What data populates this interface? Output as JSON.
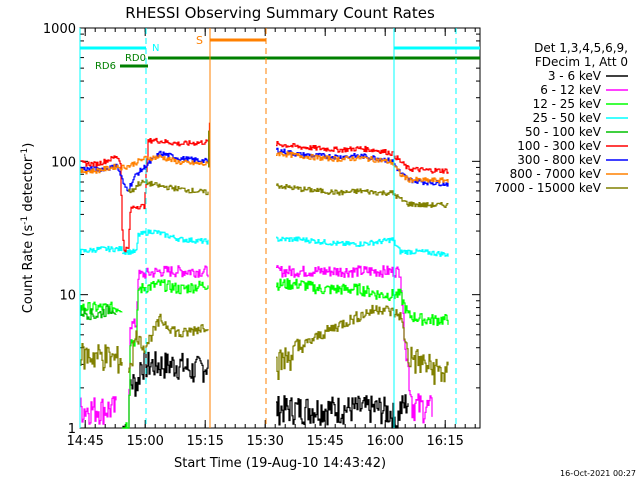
{
  "chart_data": {
    "type": "line",
    "title": "RHESSI Observing Summary Count Rates",
    "xlabel": "Start Time (19-Aug-10 14:43:42)",
    "ylabel_main": "Count Rate (s",
    "ylabel_sup1": "-1",
    "ylabel_mid": " detector",
    "ylabel_sup2": "-1",
    "ylabel_end": ")",
    "yscale": "log",
    "ylim": [
      1,
      1000
    ],
    "xlim_minutes": [
      0,
      100
    ],
    "x_ticks": [
      {
        "minute": 1.3,
        "label": "14:45"
      },
      {
        "minute": 16.3,
        "label": "15:00"
      },
      {
        "minute": 31.3,
        "label": "15:15"
      },
      {
        "minute": 46.3,
        "label": "15:30"
      },
      {
        "minute": 61.3,
        "label": "15:45"
      },
      {
        "minute": 76.3,
        "label": "16:00"
      },
      {
        "minute": 91.3,
        "label": "16:15"
      }
    ],
    "y_ticks": [
      {
        "value": 1,
        "label": "1"
      },
      {
        "value": 10,
        "label": "10"
      },
      {
        "value": 100,
        "label": "100"
      },
      {
        "value": 1000,
        "label": "1000"
      }
    ],
    "legend_header": [
      "Det 1,3,4,5,6,9,",
      "FDecim 1, Att 0"
    ],
    "timestamp": "16-Oct-2021 00:27",
    "markers": {
      "night_label": "N",
      "saa_label": "S",
      "rd0_label": "RD0",
      "rd6_label": "RD6",
      "night_color": "#00ffff",
      "saa_color": "#ff8000",
      "rd_color": "#008000",
      "night_bars": [
        [
          0,
          16.5
        ],
        [
          78.5,
          100
        ]
      ],
      "saa_bar": [
        32.5,
        46.5
      ],
      "rd0_bar": [
        17,
        100
      ],
      "rd6_bar": [
        10,
        17
      ],
      "night_lines": [
        16.5,
        94
      ],
      "night_dashed": [
        16.5,
        94
      ],
      "night_solid": [
        0,
        78.5
      ],
      "saa_solid": [
        32.5
      ],
      "saa_dashed": [
        46.5
      ]
    },
    "gap": [
      33,
      49
    ],
    "series": [
      {
        "name": "3 - 6 keV",
        "color": "#000000",
        "segments": [
          {
            "x": [
              10.5,
              12,
              12.5,
              14.5,
              15,
              20,
              25,
              28,
              32.2
            ],
            "y": [
              1,
              1,
              2.2,
              2.2,
              3,
              3,
              3,
              2.7,
              3
            ]
          },
          {
            "x": [
              49,
              55,
              60,
              65,
              70,
              75,
              78,
              79,
              80,
              82
            ],
            "y": [
              1.4,
              1.4,
              1.4,
              1.4,
              1.4,
              1.4,
              1.3,
              1.1,
              1.4,
              1.6
            ]
          }
        ]
      },
      {
        "name": "6 - 12 keV",
        "color": "#ff00ff",
        "segments": [
          {
            "x": [
              0,
              4,
              9
            ],
            "y": [
              1.4,
              1.4,
              1.4
            ]
          },
          {
            "x": [
              12,
              12.5,
              14,
              14.5,
              20,
              25,
              32.2
            ],
            "y": [
              1,
              6,
              6,
              14,
              15,
              15,
              15
            ]
          },
          {
            "x": [
              49,
              55,
              60,
              65,
              70,
              75,
              80,
              81,
              83,
              88
            ],
            "y": [
              15,
              15,
              15,
              15,
              15,
              15,
              15,
              5,
              1.5,
              1.4
            ]
          }
        ]
      },
      {
        "name": "12 - 25 keV",
        "color": "#00ff00",
        "segments": [
          {
            "x": [
              0,
              5,
              10.5
            ],
            "y": [
              8,
              8,
              8
            ]
          },
          {
            "x": [
              10.5,
              12,
              12.5,
              14,
              14.5,
              20,
              25,
              32.2
            ],
            "y": [
              1,
              1,
              4.5,
              4.5,
              11,
              12,
              11,
              12
            ]
          },
          {
            "x": [
              49,
              55,
              60,
              65,
              70,
              75,
              80,
              82,
              86,
              92
            ],
            "y": [
              12,
              12,
              11,
              11,
              11,
              10,
              10,
              7,
              6.5,
              6.5
            ]
          }
        ]
      },
      {
        "name": "25 - 50 keV",
        "color": "#00ffff",
        "segments": [
          {
            "x": [
              0,
              5,
              10.5
            ],
            "y": [
              21,
              22,
              22
            ]
          },
          {
            "x": [
              10.5,
              12,
              14,
              14.5,
              18,
              25,
              32.2
            ],
            "y": [
              21,
              21,
              21,
              28,
              30,
              26,
              25
            ]
          },
          {
            "x": [
              49,
              55,
              60,
              65,
              70,
              75,
              78,
              80,
              85,
              92
            ],
            "y": [
              26,
              26,
              25,
              24,
              24,
              25,
              26,
              21,
              21,
              20
            ]
          }
        ]
      },
      {
        "name": "50 - 100 keV",
        "color": "#00c000",
        "segments": [
          {
            "x": [
              0,
              4,
              8,
              9
            ],
            "y": [
              7.5,
              7,
              8,
              7.5
            ]
          }
        ]
      },
      {
        "name": "100 - 300 keV",
        "color": "#ff0000",
        "segments": [
          {
            "x": [
              0,
              4,
              8,
              9,
              10,
              10.5,
              11,
              12,
              12.5,
              13,
              14,
              16,
              17,
              18,
              25,
              32.2
            ],
            "y": [
              97,
              95,
              105,
              110,
              100,
              30,
              22,
              22,
              42,
              45,
              46,
              46,
              140,
              145,
              135,
              140
            ]
          },
          {
            "x": [
              49,
              55,
              60,
              65,
              70,
              75,
              78,
              80,
              82,
              86,
              92
            ],
            "y": [
              135,
              128,
              125,
              122,
              125,
              120,
              115,
              100,
              88,
              86,
              85
            ]
          }
        ]
      },
      {
        "name": "300 - 800 keV",
        "color": "#0000ff",
        "segments": [
          {
            "x": [
              0,
              4,
              8,
              9,
              10,
              11,
              12,
              14,
              16,
              20,
              25,
              32.2
            ],
            "y": [
              88,
              87,
              90,
              95,
              80,
              65,
              62,
              80,
              90,
              115,
              105,
              100
            ]
          },
          {
            "x": [
              49,
              55,
              60,
              65,
              70,
              75,
              78,
              80,
              82,
              86,
              92
            ],
            "y": [
              122,
              112,
              110,
              108,
              110,
              105,
              100,
              82,
              73,
              70,
              68
            ]
          }
        ]
      },
      {
        "name": "800 - 7000 keV",
        "color": "#ff8000",
        "segments": [
          {
            "x": [
              0,
              4,
              8,
              9,
              10,
              12,
              16,
              20,
              25,
              32.2
            ],
            "y": [
              84,
              85,
              90,
              92,
              90,
              92,
              105,
              108,
              98,
              95
            ]
          },
          {
            "x": [
              49,
              55,
              60,
              65,
              70,
              75,
              78,
              80,
              82,
              86,
              92
            ],
            "y": [
              115,
              110,
              106,
              104,
              106,
              102,
              98,
              80,
              73,
              72,
              72
            ]
          }
        ]
      },
      {
        "name": "7000 - 15000 keV",
        "color": "#808000",
        "segments": [
          {
            "x": [
              0,
              2,
              4,
              6,
              8,
              9,
              10.5
            ],
            "y": [
              3.5,
              3.5,
              3.5,
              3.5,
              3.3,
              3.3,
              3.3
            ]
          },
          {
            "x": [
              12,
              13,
              14,
              14.5,
              16,
              20,
              25,
              32.2
            ],
            "y": [
              60,
              60,
              65,
              68,
              70,
              65,
              62,
              58
            ]
          },
          {
            "x": [
              49,
              55,
              60,
              65,
              70,
              75,
              78,
              80,
              82,
              86,
              92
            ],
            "y": [
              66,
              62,
              60,
              58,
              60,
              58,
              58,
              52,
              48,
              47,
              47
            ]
          },
          {
            "x": [
              12,
              14,
              16,
              20,
              25,
              32.2
            ],
            "y": [
              3,
              5,
              4,
              6.5,
              5,
              6
            ]
          },
          {
            "x": [
              49,
              55,
              60,
              65,
              70,
              75,
              80,
              82,
              86,
              92
            ],
            "y": [
              3,
              4,
              5,
              6,
              7,
              8,
              7,
              3.5,
              3,
              2.5
            ]
          }
        ]
      }
    ],
    "spikes": [
      {
        "series": "100 - 300 keV",
        "minute": 32.4,
        "value": 195
      },
      {
        "series": "7000 - 15000 keV",
        "minute": 32.2,
        "value": 170
      }
    ]
  }
}
